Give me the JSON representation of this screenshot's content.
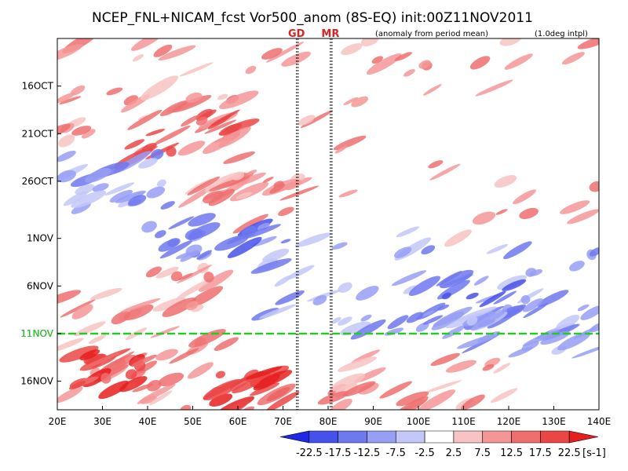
{
  "chart_data": {
    "type": "heatmap",
    "title": "NCEP_FNL+NICAM_fcst Vor500_anom (8S-EQ) init:00Z11NOV2011",
    "subtitle_left": "(anomaly from period mean)",
    "subtitle_right": "(1.0deg intpl)",
    "x_axis": {
      "range": [
        20,
        140
      ],
      "ticks": [
        20,
        30,
        40,
        50,
        60,
        70,
        80,
        90,
        100,
        110,
        120,
        130,
        140
      ],
      "tick_labels": [
        "20E",
        "30E",
        "40E",
        "50E",
        "60E",
        "70E",
        "80E",
        "90E",
        "100E",
        "110E",
        "120E",
        "130E",
        "140E"
      ]
    },
    "y_axis": {
      "tick_labels": [
        "16OCT",
        "21OCT",
        "26OCT",
        "1NOV",
        "6NOV",
        "11NOV",
        "16NOV"
      ],
      "tick_day_index": [
        5,
        10,
        15,
        21,
        26,
        31,
        36
      ],
      "day_range": [
        0,
        39
      ],
      "orientation": "time increases downward"
    },
    "reference_lines": [
      {
        "label": "GD",
        "lon": 73,
        "color": "#dd2222"
      },
      {
        "label": "MR",
        "lon": 80.5,
        "color": "#dd2222"
      }
    ],
    "init_line": {
      "label": "11NOV",
      "day_index": 31,
      "color": "#22cc22"
    },
    "colorbar": {
      "levels": [
        "-22.5",
        "-17.5",
        "-12.5",
        "-7.5",
        "-2.5",
        "2.5",
        "7.5",
        "12.5",
        "17.5",
        "22.5"
      ],
      "unit": "[s-1]",
      "colors": [
        "#1e28e6",
        "#4650eb",
        "#6e78ef",
        "#969ff4",
        "#c3c8f8",
        "#ffffff",
        "#f8c3c3",
        "#f49696",
        "#ef6e6e",
        "#eb4646",
        "#e61e1e"
      ]
    }
  }
}
